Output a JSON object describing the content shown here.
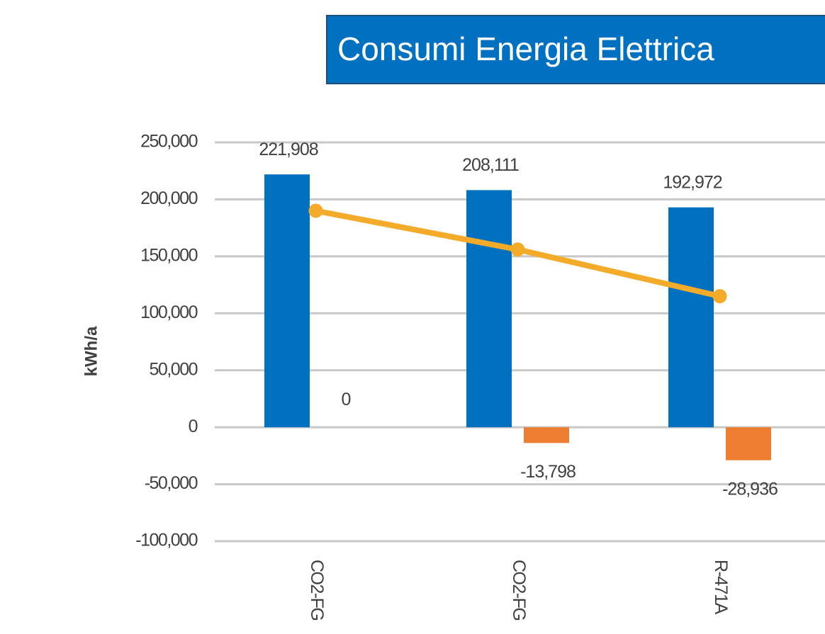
{
  "chart_data": {
    "type": "bar",
    "title": "Consumi Energia Elettrica",
    "y_axis_label": "kWh/a",
    "categories": [
      "CO2-FG",
      "CO2-FG",
      "R-471A"
    ],
    "series": [
      {
        "type": "bar",
        "color": "#0070c0",
        "values": [
          221908,
          208111,
          192972
        ],
        "value_labels": [
          "221,908",
          "208,111",
          "192,972"
        ]
      },
      {
        "type": "bar",
        "color": "#ed7d31",
        "values": [
          0,
          -13798,
          -28936
        ],
        "value_labels": [
          "0",
          "-13,798",
          "-28,936"
        ]
      },
      {
        "type": "line",
        "color": "#f5ab2a",
        "values": [
          190000,
          156000,
          115000
        ]
      }
    ],
    "ylim": [
      -100000,
      250000
    ],
    "yticks": [
      {
        "value": -100000,
        "label": "-100,000"
      },
      {
        "value": -50000,
        "label": "-50,000"
      },
      0,
      {
        "value": 50000,
        "label": "50,000"
      },
      {
        "value": 100000,
        "label": "100,000"
      },
      {
        "value": 150000,
        "label": "150,000"
      },
      {
        "value": 200000,
        "label": "200,000"
      },
      {
        "value": 250000,
        "label": "250,000"
      }
    ],
    "grid": true
  }
}
